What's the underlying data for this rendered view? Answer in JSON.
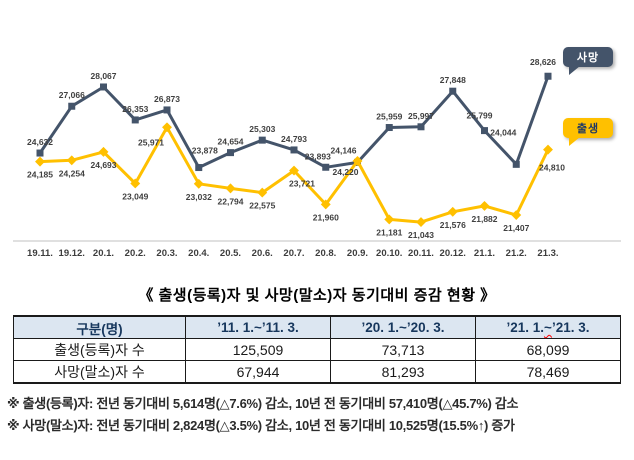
{
  "title": "《 출생(등록)자 및 사망(말소)자 동기대비 증감 현황 》",
  "chart_data": {
    "type": "line",
    "categories": [
      "19.11.",
      "19.12.",
      "20.1.",
      "20.2.",
      "20.3.",
      "20.4.",
      "20.5.",
      "20.6.",
      "20.7.",
      "20.8.",
      "20.9.",
      "20.10.",
      "20.11.",
      "20.12.",
      "21.1.",
      "21.2.",
      "21.3."
    ],
    "series": [
      {
        "name": "사망",
        "color": "#44546A",
        "marker": "square",
        "values": [
          24632,
          27066,
          28067,
          26353,
          26873,
          23878,
          24654,
          25303,
          24793,
          23893,
          24146,
          25959,
          25997,
          27848,
          25799,
          24044,
          28626
        ]
      },
      {
        "name": "출생",
        "color": "#FFC000",
        "marker": "diamond",
        "values": [
          24185,
          24254,
          24693,
          23049,
          25971,
          23032,
          22794,
          22575,
          23721,
          21960,
          24220,
          21181,
          21043,
          21576,
          21882,
          21407,
          24810
        ]
      }
    ],
    "title": "",
    "xlabel": "",
    "ylabel": "",
    "ylim": [
      20500,
      29300
    ],
    "grid": false,
    "legend_position": "right",
    "data_labels": true
  },
  "table": {
    "headers": [
      "구분(명)",
      "’11. 1.~’11. 3.",
      "’20. 1.~’20. 3.",
      "’21. 1.~’21. 3."
    ],
    "rows": [
      {
        "label": "출생(등록)자 수",
        "values": [
          "125,509",
          "73,713",
          "68,099"
        ]
      },
      {
        "label": "사망(말소)자 수",
        "values": [
          "67,944",
          "81,293",
          "78,469"
        ]
      }
    ]
  },
  "footnotes": [
    "※ 출생(등록)자: 전년 동기대비 5,614명(△7.6%) 감소, 10년 전 동기대비 57,410명(△45.7%) 감소",
    "※ 사망(말소)자: 전년 동기대비 2,824명(△3.5%) 감소, 10년 전 동기대비 10,525명(15.5%↑) 증가"
  ],
  "colors": {
    "death_line": "#44546A",
    "birth_line": "#FFC000",
    "data_label_text": "#404040",
    "axis_line": "#d6d6d6",
    "axis_label_text": "#3d3d3d",
    "table_header_bg": "#DCE6F1",
    "table_header_text": "#17375D",
    "legend_death_text": "#ffffff",
    "legend_birth_text": "#1F3864"
  }
}
